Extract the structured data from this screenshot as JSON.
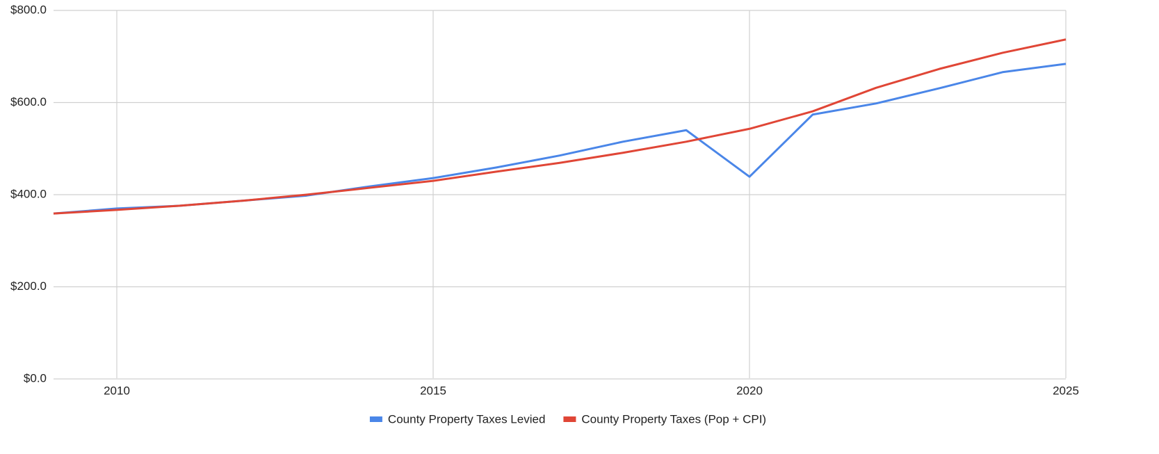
{
  "chart_data": {
    "type": "line",
    "x": [
      2009,
      2010,
      2011,
      2012,
      2013,
      2014,
      2015,
      2016,
      2017,
      2018,
      2019,
      2020,
      2021,
      2022,
      2023,
      2024,
      2025
    ],
    "series": [
      {
        "name": "County Property Taxes Levied",
        "color": "#4a86e8",
        "values": [
          359,
          370,
          376,
          387,
          398,
          418,
          436,
          459,
          485,
          515,
          540,
          439,
          574,
          598,
          631,
          666,
          684
        ]
      },
      {
        "name": "County Property Taxes (Pop + CPI)",
        "color": "#e04636",
        "values": [
          359,
          367,
          376,
          387,
          400,
          415,
          430,
          450,
          469,
          491,
          515,
          543,
          581,
          632,
          673,
          708,
          737
        ]
      }
    ],
    "xlim": [
      2009,
      2025
    ],
    "xticks": [
      2010,
      2015,
      2020,
      2025
    ],
    "ylim": [
      0,
      800
    ],
    "yticks": [
      {
        "value": 0,
        "label": "$0.0"
      },
      {
        "value": 200,
        "label": "$200.0"
      },
      {
        "value": 400,
        "label": "$400.0"
      },
      {
        "value": 600,
        "label": "$600.0"
      },
      {
        "value": 800,
        "label": "$800.0"
      }
    ],
    "grid": true,
    "legend": "bottom"
  }
}
